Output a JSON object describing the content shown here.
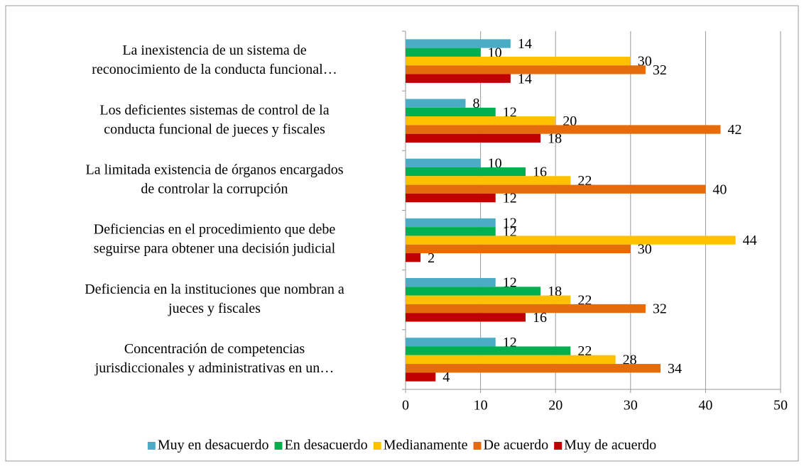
{
  "chart_data": {
    "type": "barh",
    "categories": [
      [
        "La inexistencia de un sistema de",
        "reconocimiento de la conducta funcional…"
      ],
      [
        "Los deficientes sistemas de control de la",
        "conducta funcional de jueces y fiscales"
      ],
      [
        "La limitada existencia de órganos encargados",
        "de controlar la corrupción"
      ],
      [
        "Deficiencias en el procedimiento que debe",
        "seguirse para obtener una decisión judicial"
      ],
      [
        "Deficiencia en la instituciones que nombran a",
        "jueces y fiscales"
      ],
      [
        "Concentración de competencias",
        "jurisdiccionales y administrativas en un…"
      ]
    ],
    "series": [
      {
        "name": "Muy en desacuerdo",
        "color": "#4bacc6",
        "values": [
          14,
          8,
          10,
          12,
          12,
          12
        ]
      },
      {
        "name": "En desacuerdo",
        "color": "#00b050",
        "values": [
          10,
          12,
          16,
          12,
          18,
          22
        ]
      },
      {
        "name": "Medianamente",
        "color": "#ffc000",
        "values": [
          30,
          20,
          22,
          44,
          22,
          28
        ]
      },
      {
        "name": "De acuerdo",
        "color": "#e46c0a",
        "values": [
          32,
          42,
          40,
          30,
          32,
          34
        ]
      },
      {
        "name": "Muy de acuerdo",
        "color": "#c00000",
        "values": [
          14,
          18,
          12,
          2,
          16,
          4
        ]
      }
    ],
    "xlim": [
      0,
      50
    ],
    "xticks": [
      0,
      10,
      20,
      30,
      40,
      50
    ],
    "grid": true,
    "legend": "bottom"
  }
}
